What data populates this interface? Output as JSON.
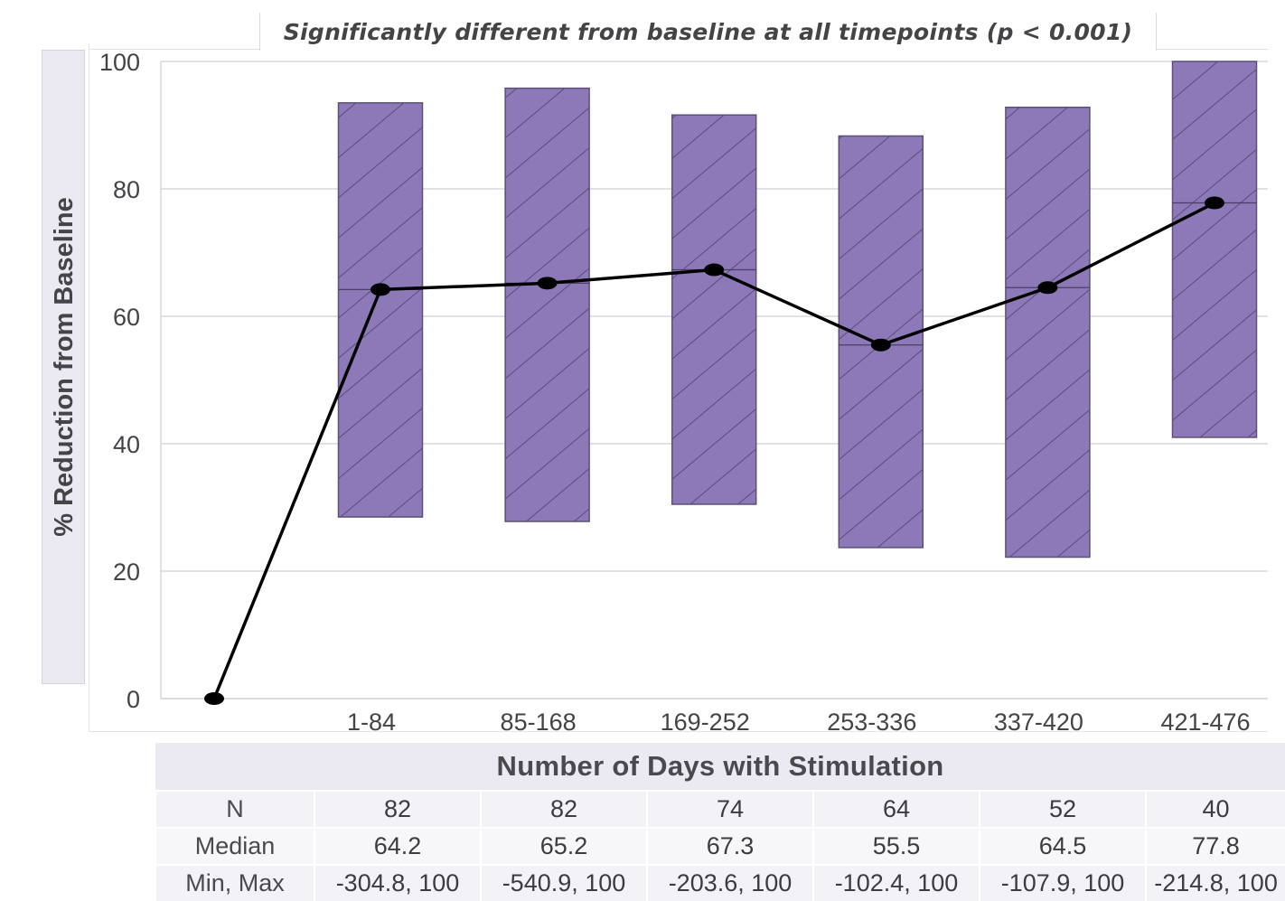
{
  "chart_data": {
    "type": "bar",
    "title": "Significantly different from baseline at all timepoints (p < 0.001)",
    "xlabel": "Number of Days with Stimulation",
    "ylabel": "% Reduction from Baseline",
    "ylim": [
      0,
      100
    ],
    "yticks": [
      0,
      20,
      40,
      60,
      80,
      100
    ],
    "grid": true,
    "legend": "none",
    "categories": [
      "1-84",
      "85-168",
      "169-252",
      "253-336",
      "337-420",
      "421-476"
    ],
    "bars": [
      {
        "category": "1-84",
        "low": 28.5,
        "high": 93.5
      },
      {
        "category": "85-168",
        "low": 27.8,
        "high": 95.8
      },
      {
        "category": "169-252",
        "low": 30.5,
        "high": 91.6
      },
      {
        "category": "253-336",
        "low": 23.7,
        "high": 88.3
      },
      {
        "category": "337-420",
        "low": 22.2,
        "high": 92.8
      },
      {
        "category": "421-476",
        "low": 41.0,
        "high": 100
      }
    ],
    "line": {
      "baseline_value": 0,
      "values": [
        64.2,
        65.2,
        67.3,
        55.5,
        64.5,
        77.8
      ]
    },
    "colors": {
      "bar_fill": "#8e79b8",
      "bar_edge": "#5c4f78",
      "hatch": "#4a3d66",
      "line": "#000000",
      "grid": "#d9d9d9"
    },
    "table": {
      "rows": [
        {
          "label": "N",
          "values": [
            "82",
            "82",
            "74",
            "64",
            "52",
            "40"
          ]
        },
        {
          "label": "Median",
          "values": [
            "64.2",
            "65.2",
            "67.3",
            "55.5",
            "64.5",
            "77.8"
          ]
        },
        {
          "label": "Min, Max",
          "values": [
            "-304.8, 100",
            "-540.9, 100",
            "-203.6, 100",
            "-102.4, 100",
            "-107.9, 100",
            "-214.8, 100"
          ]
        }
      ]
    }
  }
}
